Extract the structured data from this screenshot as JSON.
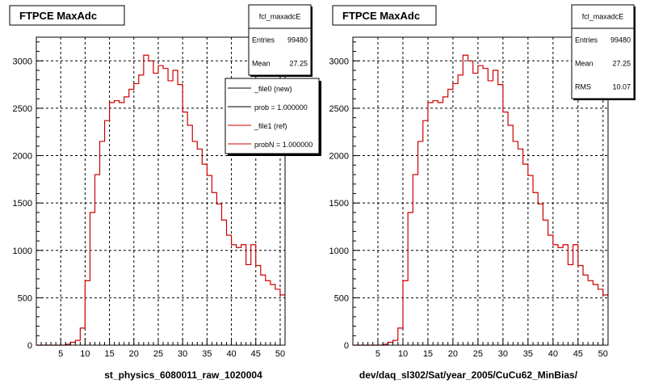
{
  "pads": [
    {
      "title": "FTPCE MaxAdc",
      "xtitle": "st_physics_6080011_raw_1020004",
      "stats": [
        {
          "label": "fcl_maxadcE",
          "value": ""
        },
        {
          "label": "Entries",
          "value": "99480"
        },
        {
          "label": "Mean",
          "value": "27.25"
        }
      ],
      "legend": [
        {
          "text": "_file0 (new)",
          "color": "#000000"
        },
        {
          "text": "prob = 1.000000",
          "color": "#000000"
        },
        {
          "text": "_file1 (ref)",
          "color": "#cc0000"
        },
        {
          "text": "probN = 1.000000",
          "color": "#cc0000"
        }
      ]
    },
    {
      "title": "FTPCE MaxAdc",
      "xtitle": "dev/daq_sl302/Sat/year_2005/CuCu62_MinBias/",
      "stats": [
        {
          "label": "fcl_maxadcE",
          "value": ""
        },
        {
          "label": "Entries",
          "value": "99480"
        },
        {
          "label": "Mean",
          "value": "27.25"
        },
        {
          "label": "RMS",
          "value": "10.07"
        }
      ],
      "legend": []
    }
  ],
  "chart_data": [
    {
      "type": "bar",
      "title": "FTPCE MaxAdc",
      "xlabel": "st_physics_6080011_raw_1020004",
      "ylabel": "",
      "xlim": [
        0,
        51
      ],
      "ylim": [
        0,
        3250
      ],
      "xticks": [
        5,
        10,
        15,
        20,
        25,
        30,
        35,
        40,
        45,
        50
      ],
      "yticks": [
        0,
        500,
        1000,
        1500,
        2000,
        2500,
        3000
      ],
      "grid": true,
      "bin_edges_start": 0,
      "bin_width": 1,
      "series": [
        {
          "name": "_file1 (ref)",
          "color": "#cc0000",
          "values": [
            0,
            0,
            0,
            0,
            0,
            0,
            10,
            30,
            50,
            180,
            680,
            1400,
            1800,
            2150,
            2370,
            2560,
            2580,
            2560,
            2620,
            2700,
            2760,
            2850,
            3060,
            3000,
            2870,
            2950,
            2920,
            2790,
            2900,
            2750,
            2460,
            2320,
            2150,
            2070,
            1910,
            1790,
            1610,
            1490,
            1320,
            1160,
            1060,
            1030,
            1060,
            850,
            1060,
            840,
            740,
            680,
            640,
            590,
            530
          ]
        }
      ]
    },
    {
      "type": "bar",
      "title": "FTPCE MaxAdc",
      "xlabel": "dev/daq_sl302/Sat/year_2005/CuCu62_MinBias/",
      "ylabel": "",
      "xlim": [
        0,
        51
      ],
      "ylim": [
        0,
        3250
      ],
      "xticks": [
        5,
        10,
        15,
        20,
        25,
        30,
        35,
        40,
        45,
        50
      ],
      "yticks": [
        0,
        500,
        1000,
        1500,
        2000,
        2500,
        3000
      ],
      "grid": true,
      "bin_edges_start": 0,
      "bin_width": 1,
      "series": [
        {
          "name": "",
          "color": "#cc0000",
          "values": [
            0,
            0,
            0,
            0,
            0,
            0,
            10,
            30,
            50,
            180,
            680,
            1400,
            1800,
            2150,
            2370,
            2560,
            2580,
            2560,
            2620,
            2700,
            2760,
            2850,
            3060,
            3000,
            2870,
            2950,
            2920,
            2790,
            2900,
            2750,
            2460,
            2320,
            2150,
            2070,
            1910,
            1790,
            1610,
            1490,
            1320,
            1160,
            1060,
            1030,
            1060,
            850,
            1060,
            840,
            740,
            680,
            640,
            590,
            530
          ]
        }
      ]
    }
  ]
}
